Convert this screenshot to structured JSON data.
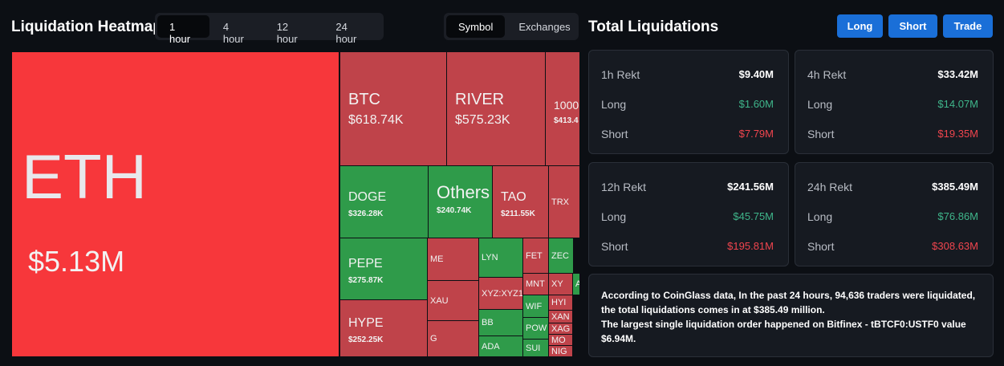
{
  "header": {
    "title": "Liquidation Heatmap",
    "time_tabs": [
      "1 hour",
      "4 hour",
      "12 hour",
      "24 hour"
    ],
    "view_tabs": [
      "Symbol",
      "Exchanges"
    ]
  },
  "heatmap": {
    "tiles": [
      {
        "symbol": "ETH",
        "value": "$5.13M"
      },
      {
        "symbol": "BTC",
        "value": "$618.74K"
      },
      {
        "symbol": "RIVER",
        "value": "$575.23K"
      },
      {
        "symbol": "1000",
        "value": "$413.4"
      },
      {
        "symbol": "DOGE",
        "value": "$326.28K"
      },
      {
        "symbol": "Others",
        "value": "$240.74K"
      },
      {
        "symbol": "TAO",
        "value": "$211.55K"
      },
      {
        "symbol": "TRX"
      },
      {
        "symbol": "PEPE",
        "value": "$275.87K"
      },
      {
        "symbol": "HYPE",
        "value": "$252.25K"
      },
      {
        "symbol": "ME"
      },
      {
        "symbol": "XAU"
      },
      {
        "symbol": "G"
      },
      {
        "symbol": "LYN"
      },
      {
        "symbol": "XYZ:XYZ1"
      },
      {
        "symbol": "BB"
      },
      {
        "symbol": "ADA"
      },
      {
        "symbol": "FET"
      },
      {
        "symbol": "ZEC"
      },
      {
        "symbol": "MNT"
      },
      {
        "symbol": "XY"
      },
      {
        "symbol": "A"
      },
      {
        "symbol": "WIF"
      },
      {
        "symbol": "HYI"
      },
      {
        "symbol": "XAN"
      },
      {
        "symbol": "POW"
      },
      {
        "symbol": "XAG"
      },
      {
        "symbol": "MO"
      },
      {
        "symbol": "SUI"
      },
      {
        "symbol": "NIG"
      }
    ]
  },
  "total": {
    "title": "Total Liquidations",
    "buttons": [
      "Long",
      "Short",
      "Trade"
    ],
    "cards": [
      {
        "label": "1h Rekt",
        "total": "$9.40M",
        "long_label": "Long",
        "long": "$1.60M",
        "short_label": "Short",
        "short": "$7.79M"
      },
      {
        "label": "4h Rekt",
        "total": "$33.42M",
        "long_label": "Long",
        "long": "$14.07M",
        "short_label": "Short",
        "short": "$19.35M"
      },
      {
        "label": "12h Rekt",
        "total": "$241.56M",
        "long_label": "Long",
        "long": "$45.75M",
        "short_label": "Short",
        "short": "$195.81M"
      },
      {
        "label": "24h Rekt",
        "total": "$385.49M",
        "long_label": "Long",
        "long": "$76.86M",
        "short_label": "Short",
        "short": "$308.63M"
      }
    ],
    "note": [
      "According to CoinGlass data, In the past 24 hours, 94,636 traders were liquidated, the total liquidations comes in at $385.49 million.",
      "The largest single liquidation order happened on Bitfinex - tBTCF0:USTF0 value $6.94M."
    ]
  }
}
